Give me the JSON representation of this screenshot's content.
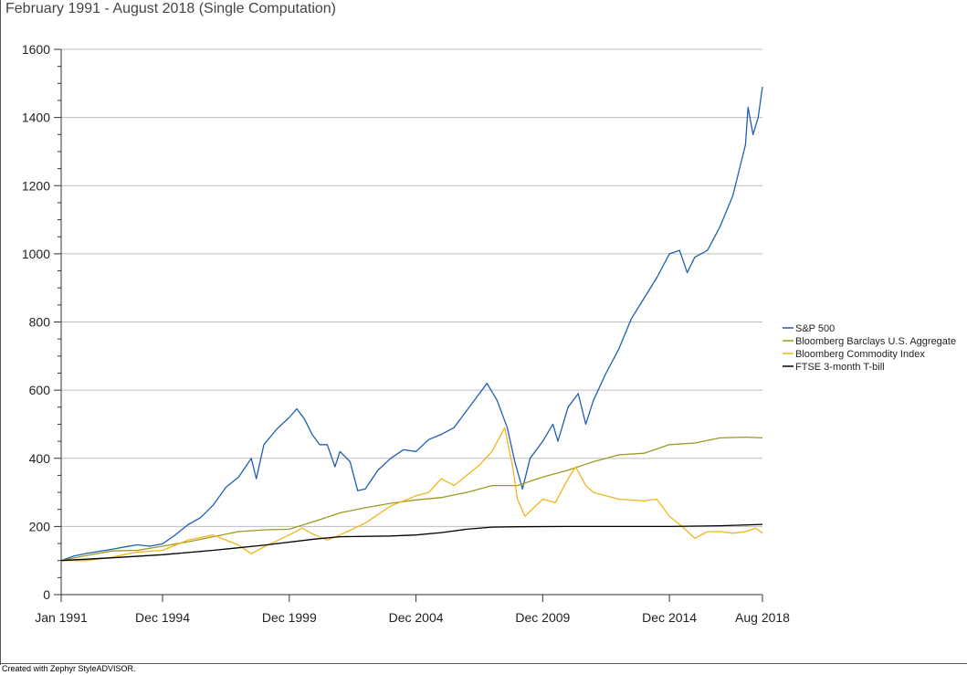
{
  "title": "February 1991 - August 2018 (Single Computation)",
  "footer": "Created with Zephyr StyleADVISOR.",
  "chart_data": {
    "type": "line",
    "title": "February 1991 - August 2018 (Single Computation)",
    "xlabel": "",
    "ylabel": "",
    "ylim": [
      0,
      1600
    ],
    "xlim": [
      1991.0,
      2018.67
    ],
    "y_ticks": [
      0,
      200,
      400,
      600,
      800,
      1000,
      1200,
      1400,
      1600
    ],
    "x_ticks": [
      {
        "label": "Jan 1991",
        "value": 1991.0
      },
      {
        "label": "Dec 1994",
        "value": 1995.0
      },
      {
        "label": "Dec 1999",
        "value": 2000.0
      },
      {
        "label": "Dec 2004",
        "value": 2005.0
      },
      {
        "label": "Dec 2009",
        "value": 2010.0
      },
      {
        "label": "Dec 2014",
        "value": 2015.0
      },
      {
        "label": "Aug 2018",
        "value": 2018.67
      }
    ],
    "grid": "horizontal",
    "legend_position": "right",
    "series": [
      {
        "name": "S&P 500",
        "color": "#1f5fb0",
        "points": [
          [
            1991.0,
            100
          ],
          [
            1991.5,
            113
          ],
          [
            1992.0,
            121
          ],
          [
            1992.5,
            127
          ],
          [
            1993.0,
            133
          ],
          [
            1993.5,
            140
          ],
          [
            1994.0,
            146
          ],
          [
            1994.5,
            142
          ],
          [
            1995.0,
            149
          ],
          [
            1995.5,
            175
          ],
          [
            1996.0,
            205
          ],
          [
            1996.5,
            226
          ],
          [
            1997.0,
            263
          ],
          [
            1997.5,
            315
          ],
          [
            1998.0,
            345
          ],
          [
            1998.5,
            400
          ],
          [
            1998.7,
            340
          ],
          [
            1999.0,
            440
          ],
          [
            1999.5,
            485
          ],
          [
            2000.0,
            520
          ],
          [
            2000.3,
            545
          ],
          [
            2000.6,
            515
          ],
          [
            2000.9,
            470
          ],
          [
            2001.2,
            440
          ],
          [
            2001.5,
            440
          ],
          [
            2001.8,
            375
          ],
          [
            2002.0,
            420
          ],
          [
            2002.4,
            390
          ],
          [
            2002.7,
            305
          ],
          [
            2003.0,
            310
          ],
          [
            2003.5,
            365
          ],
          [
            2004.0,
            400
          ],
          [
            2004.5,
            425
          ],
          [
            2005.0,
            420
          ],
          [
            2005.5,
            455
          ],
          [
            2006.0,
            470
          ],
          [
            2006.5,
            490
          ],
          [
            2007.0,
            540
          ],
          [
            2007.4,
            580
          ],
          [
            2007.8,
            620
          ],
          [
            2008.2,
            570
          ],
          [
            2008.6,
            490
          ],
          [
            2008.9,
            390
          ],
          [
            2009.2,
            310
          ],
          [
            2009.5,
            400
          ],
          [
            2010.0,
            450
          ],
          [
            2010.4,
            500
          ],
          [
            2010.6,
            450
          ],
          [
            2011.0,
            550
          ],
          [
            2011.4,
            590
          ],
          [
            2011.7,
            500
          ],
          [
            2012.0,
            570
          ],
          [
            2012.5,
            650
          ],
          [
            2013.0,
            720
          ],
          [
            2013.5,
            810
          ],
          [
            2014.0,
            870
          ],
          [
            2014.5,
            930
          ],
          [
            2015.0,
            1000
          ],
          [
            2015.4,
            1010
          ],
          [
            2015.7,
            945
          ],
          [
            2016.0,
            990
          ],
          [
            2016.5,
            1010
          ],
          [
            2017.0,
            1080
          ],
          [
            2017.5,
            1170
          ],
          [
            2018.0,
            1320
          ],
          [
            2018.1,
            1430
          ],
          [
            2018.3,
            1350
          ],
          [
            2018.5,
            1400
          ],
          [
            2018.67,
            1490
          ]
        ]
      },
      {
        "name": "Bloomberg Barclays U.S. Aggregate",
        "color": "#9a9a24",
        "points": [
          [
            1991.0,
            100
          ],
          [
            1992.0,
            115
          ],
          [
            1993.0,
            128
          ],
          [
            1994.0,
            130
          ],
          [
            1995.0,
            142
          ],
          [
            1996.0,
            155
          ],
          [
            1997.0,
            170
          ],
          [
            1998.0,
            185
          ],
          [
            1999.0,
            190
          ],
          [
            2000.0,
            192
          ],
          [
            2001.0,
            215
          ],
          [
            2002.0,
            240
          ],
          [
            2003.0,
            255
          ],
          [
            2004.0,
            268
          ],
          [
            2005.0,
            278
          ],
          [
            2006.0,
            285
          ],
          [
            2007.0,
            300
          ],
          [
            2008.0,
            320
          ],
          [
            2009.0,
            320
          ],
          [
            2010.0,
            345
          ],
          [
            2011.0,
            365
          ],
          [
            2012.0,
            390
          ],
          [
            2013.0,
            410
          ],
          [
            2014.0,
            415
          ],
          [
            2015.0,
            440
          ],
          [
            2016.0,
            445
          ],
          [
            2017.0,
            460
          ],
          [
            2018.0,
            462
          ],
          [
            2018.67,
            460
          ]
        ]
      },
      {
        "name": "Bloomberg Commodity Index",
        "color": "#f2b51a",
        "points": [
          [
            1991.0,
            100
          ],
          [
            1992.0,
            100
          ],
          [
            1993.0,
            110
          ],
          [
            1994.0,
            125
          ],
          [
            1995.0,
            130
          ],
          [
            1996.0,
            160
          ],
          [
            1997.0,
            175
          ],
          [
            1998.0,
            145
          ],
          [
            1998.5,
            120
          ],
          [
            1999.0,
            140
          ],
          [
            2000.0,
            175
          ],
          [
            2000.5,
            195
          ],
          [
            2001.0,
            175
          ],
          [
            2001.5,
            160
          ],
          [
            2002.0,
            175
          ],
          [
            2003.0,
            210
          ],
          [
            2004.0,
            260
          ],
          [
            2005.0,
            290
          ],
          [
            2005.5,
            300
          ],
          [
            2006.0,
            340
          ],
          [
            2006.5,
            320
          ],
          [
            2007.0,
            350
          ],
          [
            2007.5,
            380
          ],
          [
            2008.0,
            420
          ],
          [
            2008.5,
            490
          ],
          [
            2008.8,
            380
          ],
          [
            2009.0,
            280
          ],
          [
            2009.3,
            230
          ],
          [
            2010.0,
            280
          ],
          [
            2010.5,
            270
          ],
          [
            2011.0,
            340
          ],
          [
            2011.3,
            375
          ],
          [
            2011.7,
            320
          ],
          [
            2012.0,
            300
          ],
          [
            2013.0,
            280
          ],
          [
            2014.0,
            275
          ],
          [
            2014.5,
            280
          ],
          [
            2015.0,
            230
          ],
          [
            2015.5,
            200
          ],
          [
            2016.0,
            165
          ],
          [
            2016.5,
            185
          ],
          [
            2017.0,
            185
          ],
          [
            2017.5,
            180
          ],
          [
            2018.0,
            185
          ],
          [
            2018.4,
            195
          ],
          [
            2018.67,
            180
          ]
        ]
      },
      {
        "name": "FTSE 3-month T-bill",
        "color": "#000000",
        "points": [
          [
            1991.0,
            100
          ],
          [
            1993.0,
            108
          ],
          [
            1995.0,
            117
          ],
          [
            1997.0,
            130
          ],
          [
            1999.0,
            145
          ],
          [
            2001.0,
            163
          ],
          [
            2002.0,
            170
          ],
          [
            2004.0,
            172
          ],
          [
            2005.0,
            175
          ],
          [
            2006.0,
            182
          ],
          [
            2007.0,
            192
          ],
          [
            2008.0,
            198
          ],
          [
            2009.0,
            199
          ],
          [
            2011.0,
            200
          ],
          [
            2015.0,
            200
          ],
          [
            2016.0,
            201
          ],
          [
            2017.0,
            202
          ],
          [
            2018.67,
            206
          ]
        ]
      }
    ]
  }
}
